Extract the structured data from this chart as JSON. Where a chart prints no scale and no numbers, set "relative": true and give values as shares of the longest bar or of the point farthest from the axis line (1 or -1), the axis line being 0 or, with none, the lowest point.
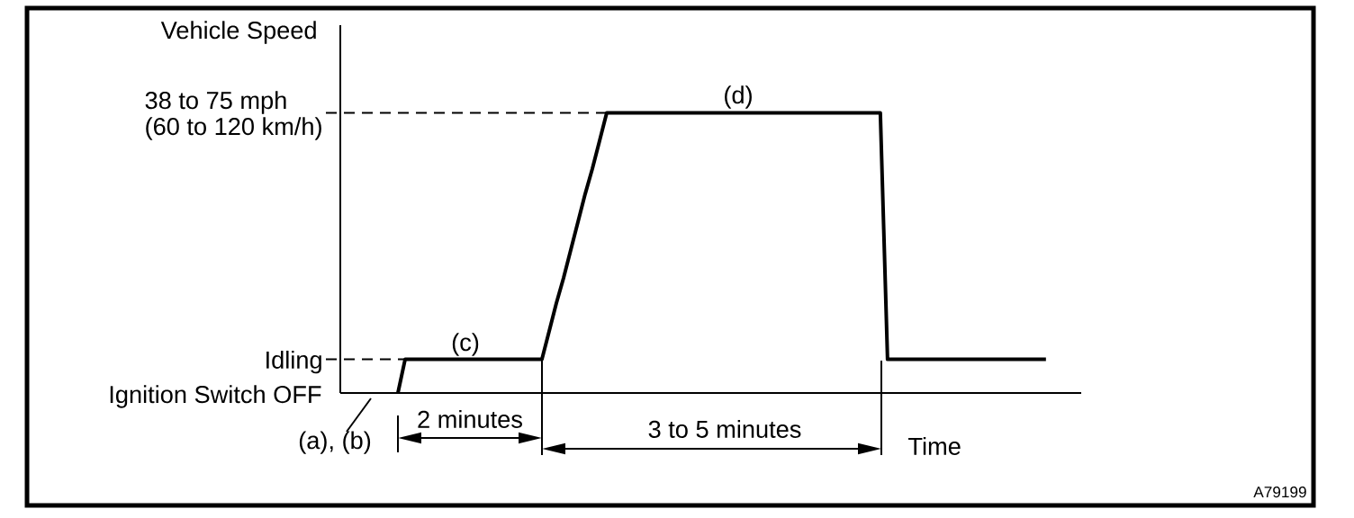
{
  "chart_data": {
    "type": "line",
    "relative": true,
    "ylabel": "Vehicle Speed",
    "xlabel": "Time",
    "categories": [
      null,
      null,
      null,
      null,
      null,
      null,
      null,
      null,
      null,
      null,
      null,
      null,
      null,
      null,
      null,
      null,
      null,
      null,
      null,
      null,
      null,
      null,
      null,
      null,
      null,
      null,
      null,
      null,
      null,
      null,
      null,
      null,
      null,
      null,
      null,
      null,
      null,
      null,
      null,
      null,
      null,
      null,
      null,
      null,
      null,
      null,
      null,
      null,
      null,
      null,
      null,
      null,
      null,
      null,
      null,
      null,
      null,
      null,
      null,
      null,
      null,
      null,
      null,
      null,
      null,
      null,
      null,
      null,
      null,
      null,
      null,
      null,
      null,
      null,
      null,
      null,
      null,
      null,
      null,
      null,
      null,
      null,
      null,
      null,
      null,
      null,
      null,
      null,
      null,
      null,
      null,
      null,
      null,
      null,
      null,
      null,
      null,
      null,
      null
    ],
    "values": [
      null,
      null,
      null,
      null,
      null,
      null,
      null,
      null,
      0,
      0.12,
      0.12,
      0.12,
      0.12,
      0.12,
      0.12,
      0.12,
      0.12,
      0.12,
      0.12,
      0.12,
      0.12,
      0.12,
      0.12,
      0.12,
      0.12,
      0.12,
      0.12,
      0.12,
      0.12,
      0.22,
      0.32,
      0.41,
      0.51,
      0.61,
      0.71,
      0.8,
      0.9,
      1,
      1,
      1,
      1,
      1,
      1,
      1,
      1,
      1,
      1,
      1,
      1,
      1,
      1,
      1,
      1,
      1,
      1,
      1,
      1,
      1,
      1,
      1,
      1,
      1,
      1,
      1,
      1,
      1,
      1,
      1,
      1,
      1,
      1,
      1,
      1,
      1,
      1,
      1,
      0.12,
      0.12,
      0.12,
      0.12,
      0.12,
      0.12,
      0.12,
      0.12,
      0.12,
      0.12,
      0.12,
      0.12,
      0.12,
      0.12,
      0.12,
      0.12,
      0.12,
      0.12,
      0.12,
      0.12,
      0.12,
      0.12,
      0.12
    ],
    "color": "#000000",
    "line_style": "solid",
    "ref_lines": [
      {
        "axis": "y",
        "value": 1,
        "label": "38 to 75 mph\n(60 to 120 km/h)",
        "line_style": "dashed"
      },
      {
        "axis": "y",
        "value": 0.12,
        "label": "Idling",
        "line_style": "dashed"
      }
    ],
    "annotations": [
      "Ignition Switch OFF",
      "(a), (b)",
      "(c)",
      "(d)",
      "2 minutes",
      "3 to 5 minutes",
      "A79199"
    ]
  }
}
